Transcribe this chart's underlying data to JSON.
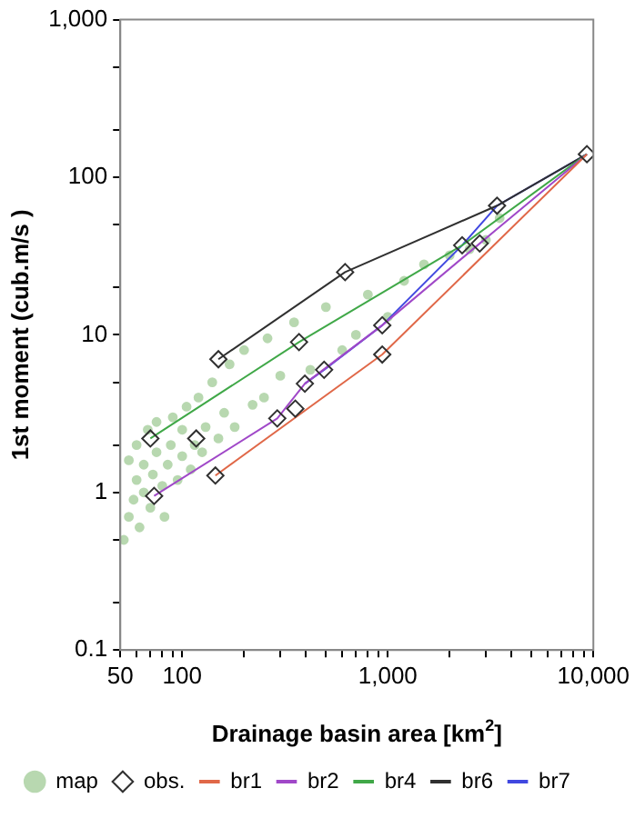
{
  "chart_data": {
    "type": "line",
    "xlabel": "Drainage basin area [km$^{2}$]",
    "ylabel": "1st moment (cub.m/s )",
    "log": "xy",
    "xlim": [
      50,
      10000
    ],
    "ylim": [
      0.1,
      1000
    ],
    "xticks": [
      50,
      {
        "value": 60,
        "label": null
      },
      {
        "value": 70,
        "label": null
      },
      {
        "value": 80,
        "label": null
      },
      {
        "value": 90,
        "label": null
      },
      {
        "value": 100,
        "label": "100"
      },
      {
        "value": 200,
        "label": null
      },
      {
        "value": 300,
        "label": null
      },
      {
        "value": 400,
        "label": null
      },
      {
        "value": 500,
        "label": null
      },
      {
        "value": 600,
        "label": null
      },
      {
        "value": 700,
        "label": null
      },
      {
        "value": 800,
        "label": null
      },
      {
        "value": 900,
        "label": null
      },
      {
        "value": 1000,
        "label": "1,000"
      },
      {
        "value": 2000,
        "label": null
      },
      {
        "value": 3000,
        "label": null
      },
      {
        "value": 4000,
        "label": null
      },
      {
        "value": 5000,
        "label": null
      },
      {
        "value": 6000,
        "label": null
      },
      {
        "value": 7000,
        "label": null
      },
      {
        "value": 8000,
        "label": null
      },
      {
        "value": 9000,
        "label": null
      },
      {
        "value": 10000,
        "label": "10,000"
      }
    ],
    "yticks": [
      0.1,
      {
        "value": 0.2,
        "label": null
      },
      {
        "value": 0.5,
        "label": null
      },
      1,
      {
        "value": 2,
        "label": null
      },
      {
        "value": 5,
        "label": null
      },
      10,
      {
        "value": 20,
        "label": null
      },
      {
        "value": 50,
        "label": null
      },
      100,
      {
        "value": 200,
        "label": null
      },
      {
        "value": 500,
        "label": null
      },
      {
        "value": 1000,
        "label": "1,000"
      }
    ],
    "grid": false,
    "legend": "bottom",
    "series": [
      {
        "name": "map",
        "type": "scatter",
        "marker": "circle",
        "color": "#b8d8b0",
        "x": [
          52,
          55,
          55,
          58,
          60,
          60,
          62,
          65,
          65,
          68,
          70,
          72,
          75,
          75,
          80,
          82,
          85,
          88,
          90,
          95,
          100,
          100,
          105,
          110,
          115,
          120,
          125,
          130,
          140,
          150,
          160,
          170,
          180,
          200,
          220,
          250,
          260,
          300,
          350,
          420,
          500,
          600,
          700,
          800,
          1000,
          1200,
          1500,
          2000,
          2500,
          3000,
          3500
        ],
        "values": [
          0.5,
          0.7,
          1.6,
          0.9,
          1.2,
          2.0,
          0.6,
          1.0,
          1.5,
          2.5,
          0.8,
          1.3,
          1.8,
          2.8,
          1.1,
          0.7,
          1.5,
          2.0,
          3.0,
          1.2,
          1.7,
          2.5,
          3.5,
          1.4,
          2.0,
          4.0,
          1.8,
          2.6,
          5.0,
          2.2,
          3.2,
          6.5,
          2.6,
          8.0,
          3.6,
          4.0,
          9.5,
          5.5,
          12,
          6.0,
          15,
          8.0,
          10,
          18,
          13,
          22,
          28,
          32,
          35,
          40,
          55
        ]
      },
      {
        "name": "obs.",
        "type": "scatter",
        "marker": "diamond",
        "color": "#303030",
        "x": [
          9300,
          3400,
          2300,
          2800,
          620,
          940,
          940,
          370,
          150,
          490,
          395,
          70,
          117,
          290,
          355,
          145,
          73
        ],
        "values": [
          140,
          66,
          37,
          38,
          25,
          11.5,
          7.5,
          9,
          7,
          6,
          4.9,
          2.2,
          2.2,
          2.95,
          3.4,
          1.28,
          0.95
        ]
      },
      {
        "name": "br1",
        "type": "line",
        "marker": "none",
        "color": "#e06848",
        "x": [
          145,
          940,
          9300
        ],
        "values": [
          1.28,
          7.5,
          140
        ]
      },
      {
        "name": "br2",
        "type": "line",
        "marker": "none",
        "color": "#a048c8",
        "x": [
          73,
          290,
          395,
          940,
          2800,
          9300
        ],
        "values": [
          0.95,
          2.95,
          4.9,
          11.5,
          38,
          140
        ]
      },
      {
        "name": "br4",
        "type": "line",
        "marker": "none",
        "color": "#40a848",
        "x": [
          70,
          370,
          2300,
          9300
        ],
        "values": [
          2.2,
          9,
          37,
          140
        ]
      },
      {
        "name": "br6",
        "type": "line",
        "marker": "none",
        "color": "#303030",
        "x": [
          150,
          620,
          3400,
          9300
        ],
        "values": [
          7,
          25,
          66,
          140
        ]
      },
      {
        "name": "br7",
        "type": "line",
        "marker": "none",
        "color": "#4048e0",
        "x": [
          395,
          490,
          940,
          2300,
          3400,
          9300
        ],
        "values": [
          4.9,
          6,
          11.5,
          37,
          66,
          140
        ]
      }
    ]
  }
}
